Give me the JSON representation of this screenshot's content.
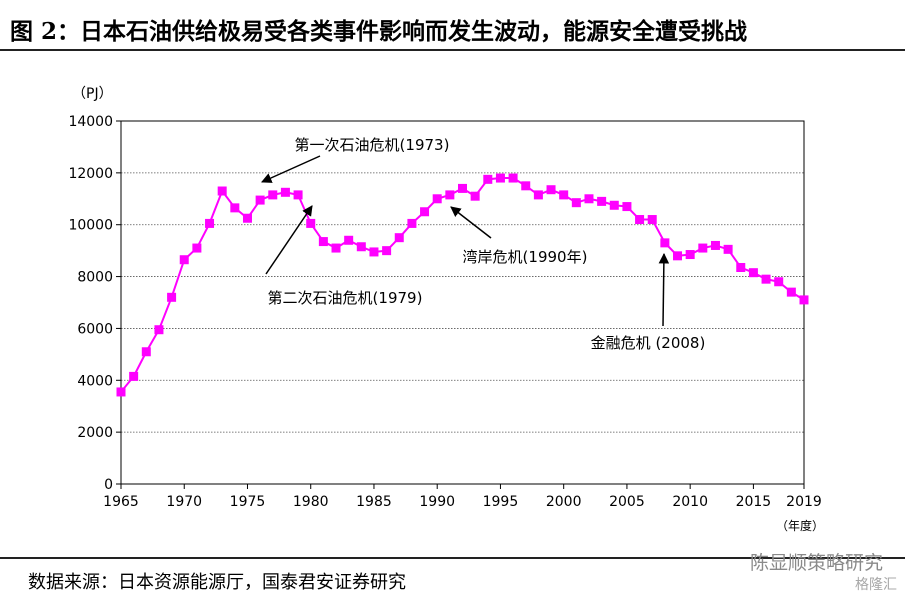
{
  "page": {
    "title": "图 2：日本石油供给极易受各类事件影响而发生波动，能源安全遭受挑战",
    "source": "数据来源：日本资源能源厅，国泰君安证券研究",
    "watermark": "陈显顺策略研究",
    "watermark2": "格隆汇"
  },
  "chart_data": {
    "type": "line",
    "ylabel": "（PJ）",
    "xlabel": "（年度）",
    "ylim": [
      0,
      14000
    ],
    "yticks": [
      0,
      2000,
      4000,
      6000,
      8000,
      10000,
      12000,
      14000
    ],
    "xlim": [
      1965,
      2019
    ],
    "xticks": [
      1965,
      1970,
      1975,
      1980,
      1985,
      1990,
      1995,
      2000,
      2005,
      2010,
      2015,
      2019
    ],
    "grid": true,
    "colors": {
      "series": "#ff00ff",
      "axis": "#000000",
      "grid": "#555555"
    },
    "series": [
      {
        "x": [
          1965,
          1966,
          1967,
          1968,
          1969,
          1970,
          1971,
          1972,
          1973,
          1974,
          1975,
          1976,
          1977,
          1978,
          1979,
          1980,
          1981,
          1982,
          1983,
          1984,
          1985,
          1986,
          1987,
          1988,
          1989,
          1990,
          1991,
          1992,
          1993,
          1994,
          1995,
          1996,
          1997,
          1998,
          1999,
          2000,
          2001,
          2002,
          2003,
          2004,
          2005,
          2006,
          2007,
          2008,
          2009,
          2010,
          2011,
          2012,
          2013,
          2014,
          2015,
          2016,
          2017,
          2018,
          2019
        ],
        "values": [
          3550,
          4150,
          5100,
          5950,
          7200,
          8650,
          9100,
          10050,
          11300,
          10650,
          10250,
          10950,
          11150,
          11250,
          11150,
          10050,
          9350,
          9100,
          9400,
          9150,
          8950,
          9000,
          9500,
          10050,
          10500,
          11000,
          11150,
          11400,
          11100,
          11750,
          11800,
          11800,
          11500,
          11150,
          11350,
          11150,
          10850,
          11000,
          10900,
          10750,
          10700,
          10200,
          10200,
          9300,
          8800,
          8850,
          9100,
          9200,
          9050,
          8350,
          8150,
          7900,
          7800,
          7400,
          7100
        ]
      }
    ],
    "annotations": [
      {
        "label": "第一次石油危机(1973)",
        "x": 1976,
        "y": 11650
      },
      {
        "label": "第二次石油危机(1979)",
        "x": 1979,
        "y": 11100
      },
      {
        "label": "湾岸危机(1990年)",
        "x": 1991,
        "y": 10700
      },
      {
        "label": "金融危机 (2008)",
        "x": 2008,
        "y": 8850
      }
    ]
  }
}
